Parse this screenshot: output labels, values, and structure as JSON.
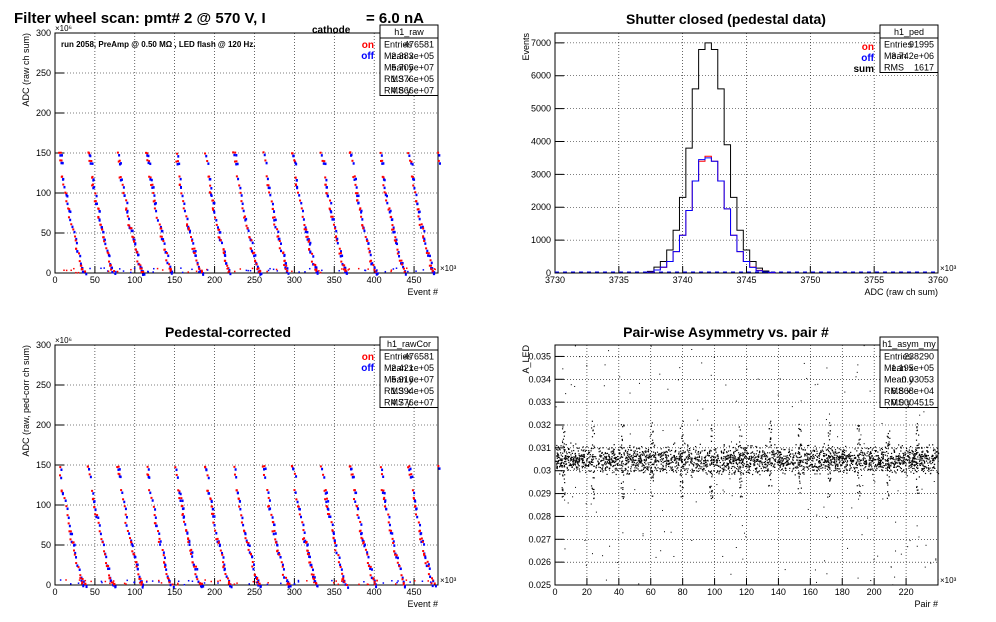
{
  "canvas_title": {
    "main": "Filter wheel scan: pmt#   2 @   570 V, I",
    "sub": "cathode",
    "tail": "= 6.0 nA"
  },
  "series_labels": {
    "on": "on",
    "off": "off",
    "sum": "sum"
  },
  "colors": {
    "on": "#ff0000",
    "off": "#0000ff",
    "sum": "#000000",
    "axis": "#000000"
  },
  "chart_data": [
    {
      "id": "raw",
      "type": "scatter",
      "title": "",
      "annotation": "run 2058, PreAmp @ 0.50 MΩ , LED flash @  120 Hz.",
      "xlabel": "Event #",
      "ylabel": "ADC (raw ch sum)",
      "x_multiplier": "×10³",
      "y_multiplier": "×10⁶",
      "xlim": [
        0,
        480
      ],
      "ylim": [
        0,
        300
      ],
      "x_ticks": [
        0,
        50,
        100,
        150,
        200,
        250,
        300,
        350,
        400,
        450
      ],
      "y_ticks": [
        0,
        50,
        100,
        150,
        200,
        250,
        300
      ],
      "grid": true,
      "legend": [
        "on",
        "off"
      ],
      "stats": {
        "name": "h1_raw",
        "rows": [
          [
            "Entries",
            "476581"
          ],
          [
            "Mean x",
            "2.383e+05"
          ],
          [
            "Mean y",
            "5.705e+07"
          ],
          [
            "RMS x",
            "1.376e+05"
          ],
          [
            "RMS y",
            "4.866e+07"
          ]
        ]
      },
      "pattern": {
        "period": 36.5,
        "levels": [
          150,
          140,
          120,
          110,
          100,
          90,
          80,
          70,
          60,
          55,
          45,
          40,
          30,
          25,
          15,
          10,
          5,
          2
        ]
      }
    },
    {
      "id": "ped",
      "type": "line",
      "title": "Shutter closed (pedestal data)",
      "xlabel": "ADC (raw ch sum)",
      "ylabel": "Events",
      "x_multiplier": "×10³",
      "xlim": [
        3730,
        3760
      ],
      "ylim": [
        0,
        7300
      ],
      "x_ticks": [
        3730,
        3735,
        3740,
        3745,
        3750,
        3755,
        3760
      ],
      "y_ticks": [
        0,
        1000,
        2000,
        3000,
        4000,
        5000,
        6000,
        7000
      ],
      "grid": true,
      "legend": [
        "on",
        "off",
        "sum"
      ],
      "stats": {
        "name": "h1_ped",
        "rows": [
          [
            "Entries",
            "91995"
          ],
          [
            "Mean",
            "3.742e+06"
          ],
          [
            "RMS",
            "1617"
          ]
        ]
      },
      "series": [
        {
          "name": "sum",
          "x": [
            3737.5,
            3738,
            3738.5,
            3739,
            3739.5,
            3740,
            3740.5,
            3741,
            3741.5,
            3742,
            3742.5,
            3743,
            3743.5,
            3744,
            3744.5,
            3745,
            3745.5,
            3746,
            3746.5,
            3747
          ],
          "values": [
            50,
            180,
            350,
            700,
            1300,
            2300,
            3800,
            5600,
            6800,
            7000,
            6800,
            5600,
            3900,
            2300,
            1300,
            700,
            350,
            150,
            60,
            20
          ]
        },
        {
          "name": "on",
          "x": [
            3737.5,
            3738,
            3738.5,
            3739,
            3739.5,
            3740,
            3740.5,
            3741,
            3741.5,
            3742,
            3742.5,
            3743,
            3743.5,
            3744,
            3744.5,
            3745,
            3745.5,
            3746,
            3746.5,
            3747
          ],
          "values": [
            25,
            90,
            170,
            350,
            650,
            1150,
            1900,
            2800,
            3400,
            3550,
            3400,
            2800,
            1950,
            1150,
            650,
            350,
            180,
            80,
            30,
            10
          ]
        },
        {
          "name": "off",
          "x": [
            3737.5,
            3738,
            3738.5,
            3739,
            3739.5,
            3740,
            3740.5,
            3741,
            3741.5,
            3742,
            3742.5,
            3743,
            3743.5,
            3744,
            3744.5,
            3745,
            3745.5,
            3746,
            3746.5,
            3747
          ],
          "values": [
            25,
            90,
            180,
            350,
            650,
            1150,
            1900,
            2800,
            3450,
            3500,
            3400,
            2800,
            1950,
            1150,
            650,
            350,
            170,
            70,
            30,
            10
          ]
        }
      ]
    },
    {
      "id": "rawCor",
      "type": "scatter",
      "title": "Pedestal-corrected",
      "xlabel": "Event #",
      "ylabel": "ADC (raw, ped-corr ch sum)",
      "x_multiplier": "×10³",
      "y_multiplier": "×10⁶",
      "xlim": [
        0,
        480
      ],
      "ylim": [
        0,
        300
      ],
      "x_ticks": [
        0,
        50,
        100,
        150,
        200,
        250,
        300,
        350,
        400,
        450
      ],
      "y_ticks": [
        0,
        50,
        100,
        150,
        200,
        250,
        300
      ],
      "grid": true,
      "legend": [
        "on",
        "off"
      ],
      "stats": {
        "name": "h1_rawCor",
        "rows": [
          [
            "Entries",
            "476581"
          ],
          [
            "Mean x",
            "2.421e+05"
          ],
          [
            "Mean y",
            "5.916e+07"
          ],
          [
            "RMS x",
            "1.394e+05"
          ],
          [
            "RMS y",
            "4.776e+07"
          ]
        ]
      },
      "pattern": {
        "period": 36.5,
        "levels": [
          148,
          138,
          118,
          108,
          98,
          88,
          78,
          68,
          58,
          53,
          43,
          38,
          28,
          23,
          13,
          8,
          3,
          1
        ]
      }
    },
    {
      "id": "asym",
      "type": "scatter",
      "title": "Pair-wise Asymmetry vs. pair #",
      "xlabel": "Pair #",
      "ylabel": "A_LED",
      "x_multiplier": "×10³",
      "xlim": [
        0,
        240
      ],
      "ylim": [
        0.025,
        0.0355
      ],
      "x_ticks": [
        0,
        20,
        40,
        60,
        80,
        100,
        120,
        140,
        160,
        180,
        200,
        220
      ],
      "y_ticks": [
        0.025,
        0.026,
        0.027,
        0.028,
        0.029,
        0.03,
        0.031,
        0.032,
        0.033,
        0.034,
        0.035
      ],
      "grid": true,
      "stats": {
        "name": "h1_asym_my",
        "rows": [
          [
            "Entries",
            "238290"
          ],
          [
            "Mean x",
            "1.195e+05"
          ],
          [
            "Mean y",
            "0.03053"
          ],
          [
            "RMS x",
            "6.868e+04"
          ],
          [
            "RMS y",
            "0.0004515"
          ]
        ]
      },
      "band": {
        "center": 0.0305,
        "half_width": 0.0005,
        "spike_period": 18.5
      }
    }
  ]
}
